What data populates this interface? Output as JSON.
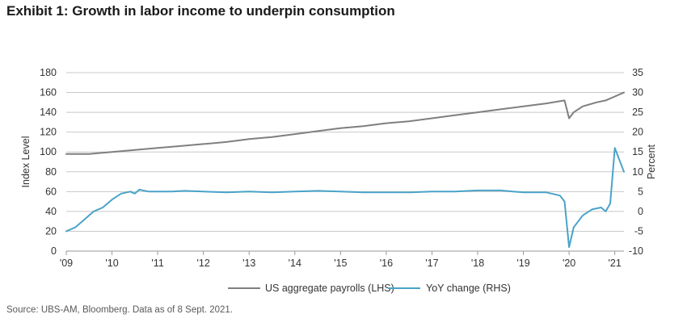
{
  "title": "Exhibit 1: Growth in labor income to underpin consumption",
  "source": "Source: UBS-AM, Bloomberg. Data as of 8 Sept. 2021.",
  "chart_data": {
    "type": "line",
    "xlabel": "",
    "x_tick_labels": [
      "'09",
      "'10",
      "'11",
      "'12",
      "'13",
      "'14",
      "'15",
      "'16",
      "'17",
      "'18",
      "'19",
      "'20",
      "'21"
    ],
    "y_left": {
      "label": "Index Level",
      "ylim": [
        0,
        180
      ],
      "ticks": [
        "0",
        "20",
        "40",
        "60",
        "80",
        "100",
        "120",
        "140",
        "160",
        "180"
      ]
    },
    "y_right": {
      "label": "Percent",
      "ylim": [
        -10,
        35
      ],
      "ticks": [
        "-10",
        "-5",
        "0",
        "5",
        "10",
        "15",
        "20",
        "25",
        "30",
        "35"
      ]
    },
    "grid": true,
    "legend_position": "bottom",
    "series": [
      {
        "name": "US aggregate payrolls (LHS)",
        "axis": "left",
        "color": "#7f7f7f",
        "x": [
          2009.0,
          2009.5,
          2010.0,
          2010.5,
          2011.0,
          2011.5,
          2012.0,
          2012.5,
          2013.0,
          2013.5,
          2014.0,
          2014.5,
          2015.0,
          2015.5,
          2016.0,
          2016.5,
          2017.0,
          2017.5,
          2018.0,
          2018.5,
          2019.0,
          2019.5,
          2019.9,
          2020.0,
          2020.1,
          2020.3,
          2020.6,
          2020.8,
          2021.0,
          2021.2
        ],
        "values": [
          98,
          98,
          100,
          102,
          104,
          106,
          108,
          110,
          113,
          115,
          118,
          121,
          124,
          126,
          129,
          131,
          134,
          137,
          140,
          143,
          146,
          149,
          152,
          134,
          140,
          146,
          150,
          152,
          156,
          160
        ]
      },
      {
        "name": "YoY change (RHS)",
        "axis": "right",
        "color": "#4aa3c8",
        "x": [
          2009.0,
          2009.2,
          2009.4,
          2009.6,
          2009.8,
          2010.0,
          2010.2,
          2010.4,
          2010.5,
          2010.6,
          2010.8,
          2011.0,
          2011.3,
          2011.6,
          2012.0,
          2012.5,
          2013.0,
          2013.5,
          2014.0,
          2014.5,
          2015.0,
          2015.5,
          2016.0,
          2016.5,
          2017.0,
          2017.5,
          2018.0,
          2018.5,
          2019.0,
          2019.5,
          2019.8,
          2019.9,
          2020.0,
          2020.1,
          2020.3,
          2020.5,
          2020.7,
          2020.8,
          2020.9,
          2021.0,
          2021.2
        ],
        "values": [
          -5,
          -4,
          -2,
          0,
          1,
          3,
          4.5,
          5,
          4.5,
          5.5,
          5,
          5,
          5,
          5.2,
          5,
          4.8,
          5,
          4.8,
          5,
          5.2,
          5,
          4.8,
          4.8,
          4.8,
          5,
          5,
          5.3,
          5.3,
          4.8,
          4.8,
          4,
          2.5,
          -9,
          -4,
          -1,
          0.5,
          1,
          0,
          2,
          16,
          10
        ]
      }
    ]
  }
}
